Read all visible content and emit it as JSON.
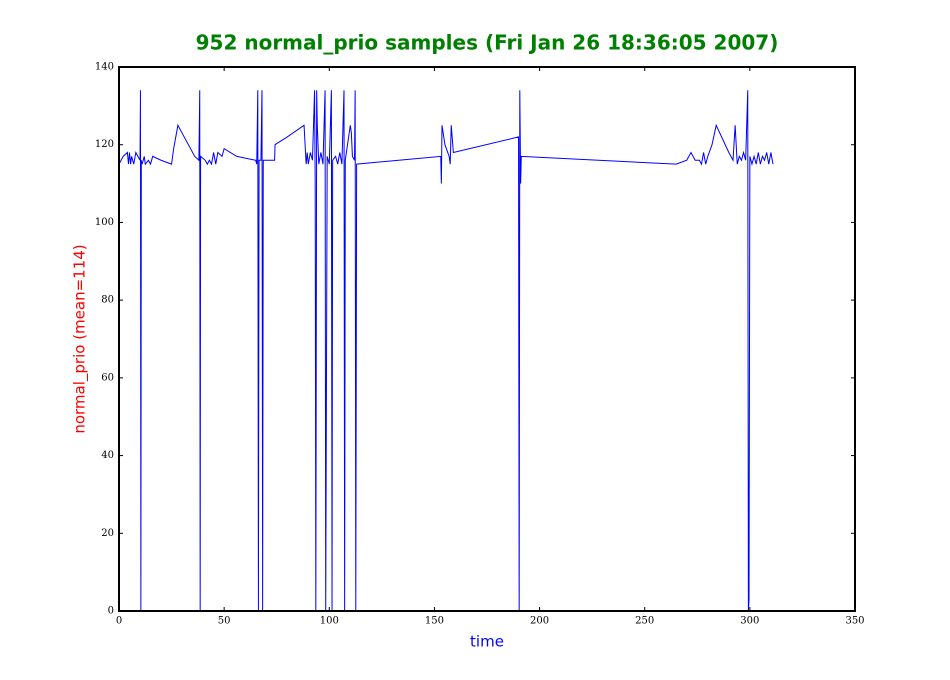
{
  "chart_data": {
    "type": "line",
    "title": "952 normal_prio samples (Fri Jan 26 18:36:05 2007)",
    "xlabel": "time",
    "ylabel": "normal_prio (mean=114)",
    "x": [
      0,
      2,
      4,
      4.5,
      5,
      5.5,
      6,
      7,
      8,
      9,
      10,
      10.2,
      10.4,
      10.6,
      11,
      12,
      12.5,
      14,
      15,
      16,
      20,
      25,
      26,
      28,
      30,
      36,
      38,
      38.2,
      38.4,
      38.6,
      38.8,
      41,
      42,
      43,
      44,
      45,
      46,
      47,
      49,
      50,
      56,
      65,
      65.5,
      66,
      66.3,
      66.6,
      67.5,
      68,
      68.3,
      68.6,
      70,
      74,
      74.2,
      80,
      88,
      89,
      89.5,
      90,
      91,
      92,
      93,
      93.3,
      93.6,
      94,
      94.3,
      95,
      96,
      97,
      98,
      98.3,
      99,
      100,
      101,
      101.3,
      101.6,
      103,
      104,
      105,
      106,
      107,
      107.3,
      107.6,
      110,
      110.5,
      111,
      112,
      112.3,
      112.6,
      113,
      153,
      153.3,
      153.6,
      155,
      157,
      157.5,
      158,
      159,
      190,
      190.3,
      190.6,
      191,
      191.3,
      265,
      270,
      272,
      274,
      276,
      277,
      278,
      279,
      280,
      282,
      284,
      290,
      292,
      293,
      294,
      295,
      296,
      297,
      298,
      299,
      299.3,
      299.6,
      300,
      301,
      302,
      303,
      304,
      305,
      306,
      307,
      308,
      309,
      310,
      311
    ],
    "values": [
      115,
      117,
      118,
      115,
      118,
      115,
      117,
      115,
      118,
      117,
      116,
      134,
      0,
      116,
      115,
      117,
      115,
      116,
      115,
      117,
      116,
      115,
      119,
      125,
      123,
      117,
      116,
      125,
      134,
      0,
      117,
      116,
      115,
      116,
      115,
      118,
      115,
      118,
      117,
      119,
      117,
      116,
      115,
      134,
      0,
      116,
      116,
      134,
      0,
      116,
      116,
      116,
      120,
      122,
      125,
      115,
      118,
      115,
      118,
      116,
      134,
      109,
      0,
      134,
      125,
      115,
      118,
      115,
      134,
      0,
      117,
      115,
      134,
      0,
      116,
      117,
      115,
      118,
      115,
      134,
      0,
      116,
      125,
      123,
      117,
      116,
      134,
      0,
      115,
      117,
      110,
      125,
      120,
      117,
      115,
      125,
      118,
      122,
      0,
      134,
      110,
      117,
      115,
      116,
      118,
      116,
      116,
      115,
      118,
      115,
      117,
      120,
      125,
      118,
      116,
      125,
      115,
      117,
      116,
      118,
      116,
      134,
      0,
      3,
      117,
      115,
      117,
      115,
      118,
      115,
      117,
      116,
      118,
      115,
      118,
      115
    ],
    "color": "#0000ff",
    "xlim": [
      0,
      350
    ],
    "xticks": [
      0,
      50,
      100,
      150,
      200,
      250,
      300,
      350
    ],
    "ylim": [
      0,
      140
    ],
    "yticks": [
      0,
      20,
      40,
      60,
      80,
      100,
      120,
      140
    ],
    "title_color": "#008000",
    "xlabel_color": "#0000ff",
    "ylabel_color": "#ff0000"
  }
}
